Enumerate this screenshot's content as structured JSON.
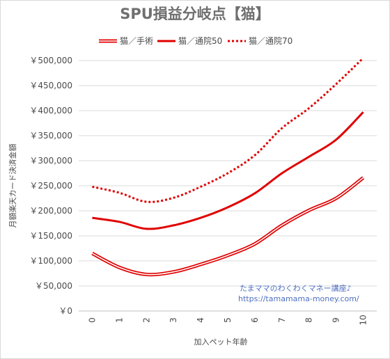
{
  "chart_data": {
    "type": "line",
    "title": "SPU損益分岐点【猫】",
    "xlabel": "加入ペット年齢",
    "ylabel": "月額楽天カード決済金額",
    "categories": [
      "0",
      "1",
      "2",
      "3",
      "4",
      "5",
      "6",
      "7",
      "8",
      "9",
      "10"
    ],
    "ylim": [
      0,
      500000
    ],
    "yticks": [
      "￥0",
      "￥50,000",
      "￥100,000",
      "￥150,000",
      "￥200,000",
      "￥250,000",
      "￥300,000",
      "￥350,000",
      "￥400,000",
      "￥450,000",
      "￥500,000"
    ],
    "grid": true,
    "legend_position": "top",
    "series": [
      {
        "name": "猫／手術",
        "style": "double",
        "color": "#e00000",
        "values": [
          115000,
          87000,
          73000,
          78000,
          93000,
          111000,
          134000,
          171000,
          201000,
          225000,
          266000
        ]
      },
      {
        "name": "猫／通院50",
        "style": "solid",
        "color": "#e00000",
        "values": [
          186000,
          178000,
          164000,
          171000,
          186000,
          207000,
          235000,
          275000,
          308000,
          342000,
          397000
        ]
      },
      {
        "name": "猫／通院70",
        "style": "dotted",
        "color": "#e00000",
        "values": [
          248000,
          236000,
          218000,
          226000,
          248000,
          275000,
          311000,
          365000,
          405000,
          453000,
          505000
        ]
      }
    ]
  },
  "watermark": {
    "line1": "たまママのわくわくマネー講座♪",
    "line2": "https://tamamama-money.com/"
  }
}
